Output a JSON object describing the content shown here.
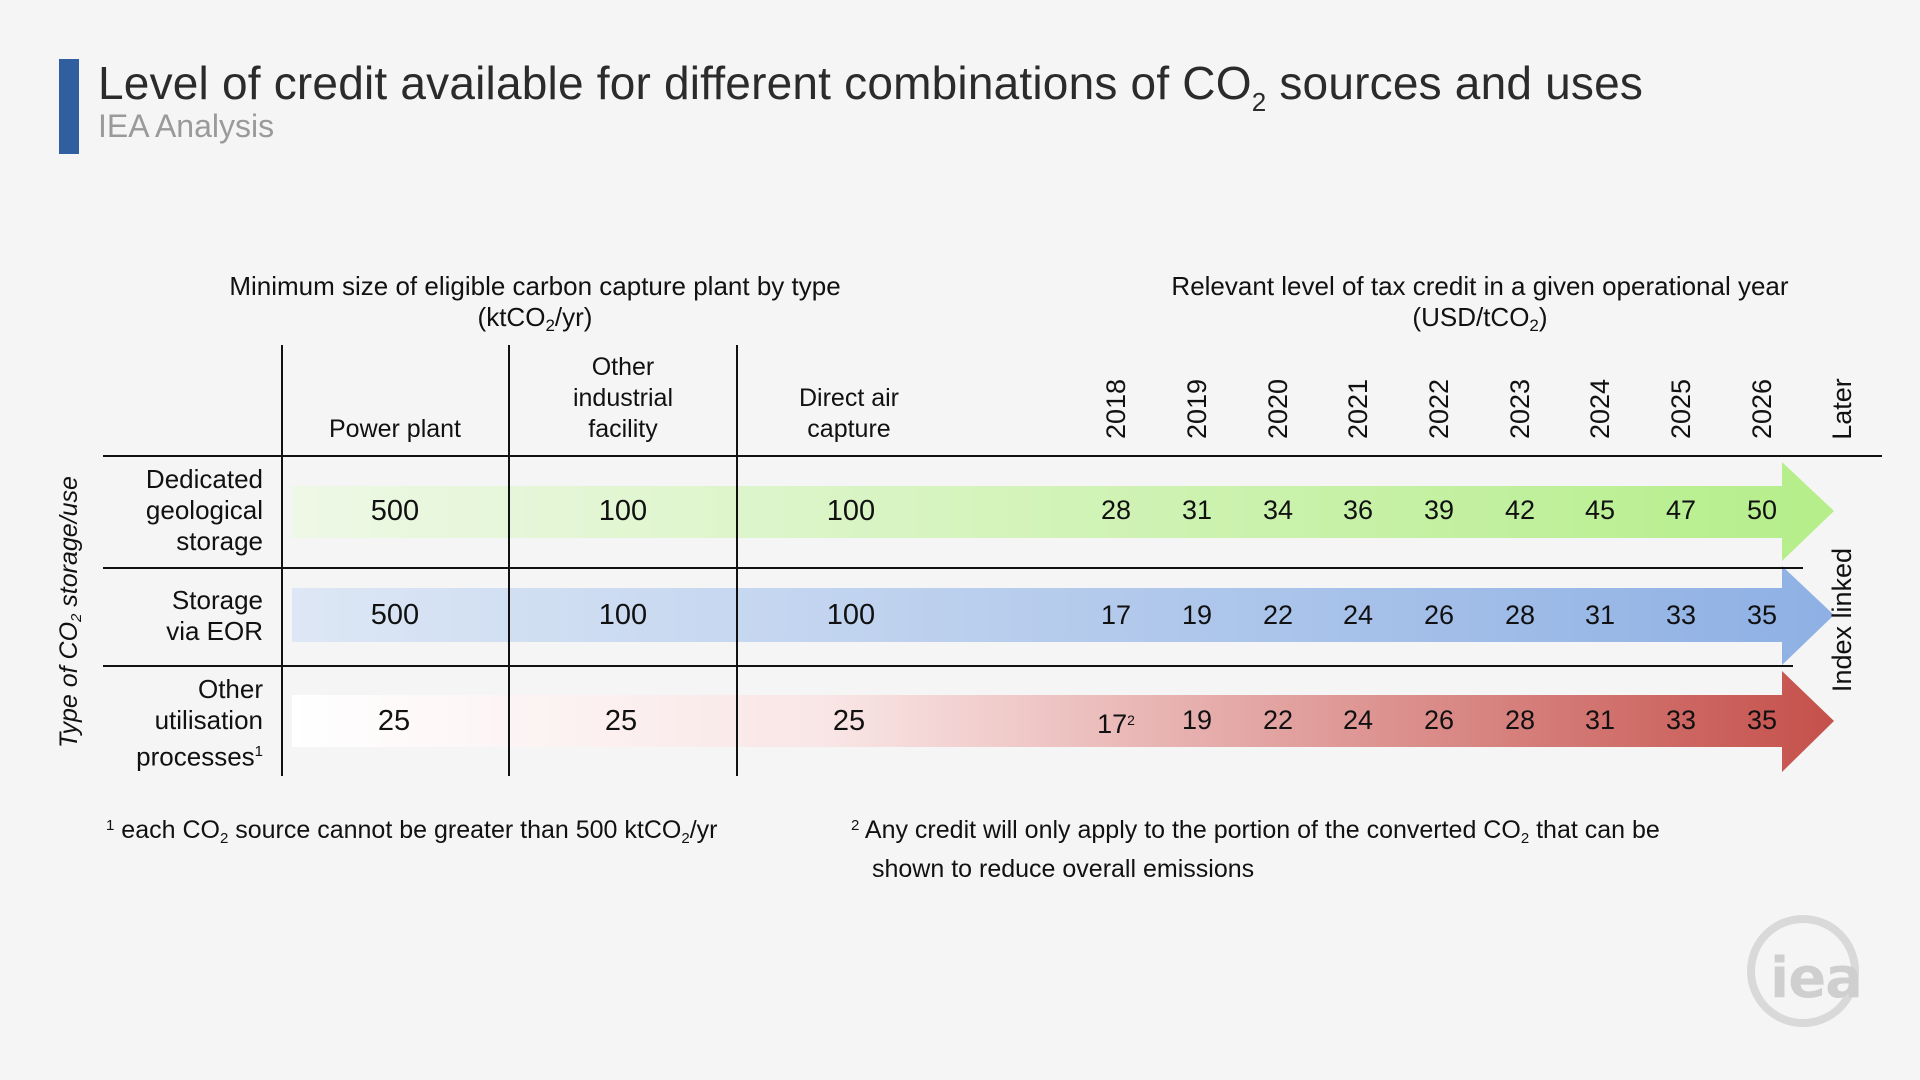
{
  "header": {
    "title": "Level of credit available for different combinations of CO",
    "title_sub": "2",
    "title_end": " sources and uses",
    "subtitle": "IEA Analysis"
  },
  "left_group": {
    "line1": "Minimum size of eligible carbon capture plant by type",
    "line2_a": "(ktCO",
    "line2_sub": "2",
    "line2_b": "/yr)"
  },
  "right_group": {
    "line1": "Relevant level of tax credit in a given operational year",
    "line2_a": "(USD/tCO",
    "line2_sub": "2",
    "line2_b": ")"
  },
  "columns": {
    "power_plant": "Power plant",
    "industrial_1": "Other",
    "industrial_2": "industrial",
    "industrial_3": "facility",
    "dac_1": "Direct air",
    "dac_2": "capture"
  },
  "years": [
    "2018",
    "2019",
    "2020",
    "2021",
    "2022",
    "2023",
    "2024",
    "2025",
    "2026",
    "Later"
  ],
  "axis_label": {
    "a": "Type of CO",
    "sub": "2",
    "b": " storage/use"
  },
  "index_label": "Index linked",
  "rows": [
    {
      "label": [
        "Dedicated",
        "geological",
        "storage"
      ],
      "min_size": [
        "500",
        "100",
        "100"
      ],
      "credits": [
        "28",
        "31",
        "34",
        "36",
        "39",
        "42",
        "45",
        "47",
        "50"
      ],
      "color_start": "#eef8e6",
      "color_end": "#b5ee8a"
    },
    {
      "label": [
        "Storage",
        "via EOR"
      ],
      "min_size": [
        "500",
        "100",
        "100"
      ],
      "credits": [
        "17",
        "19",
        "22",
        "24",
        "26",
        "28",
        "31",
        "33",
        "35"
      ],
      "color_start": "#dde7f5",
      "color_end": "#8eb0e4"
    },
    {
      "label": [
        "Other",
        "utilisation",
        "processes"
      ],
      "label_sup": "1",
      "min_size": [
        "25",
        "25",
        "25"
      ],
      "credits": [
        "17",
        "19",
        "22",
        "24",
        "26",
        "28",
        "31",
        "33",
        "35"
      ],
      "first_credit_sup": "2",
      "color_start": "#ffffff",
      "color_end": "#c5504b"
    }
  ],
  "footnotes": {
    "f1_mark": "1",
    "f1_a": " each CO",
    "f1_sub1": "2",
    "f1_b": " source cannot be greater than 500 ktCO",
    "f1_sub2": "2",
    "f1_c": "/yr",
    "f2_mark": "2",
    "f2_a": " Any credit will only apply to the portion of the converted CO",
    "f2_sub": "2",
    "f2_b": " that can be",
    "f2_line2": "shown to reduce overall emissions"
  },
  "logo": {
    "text": "iea"
  }
}
